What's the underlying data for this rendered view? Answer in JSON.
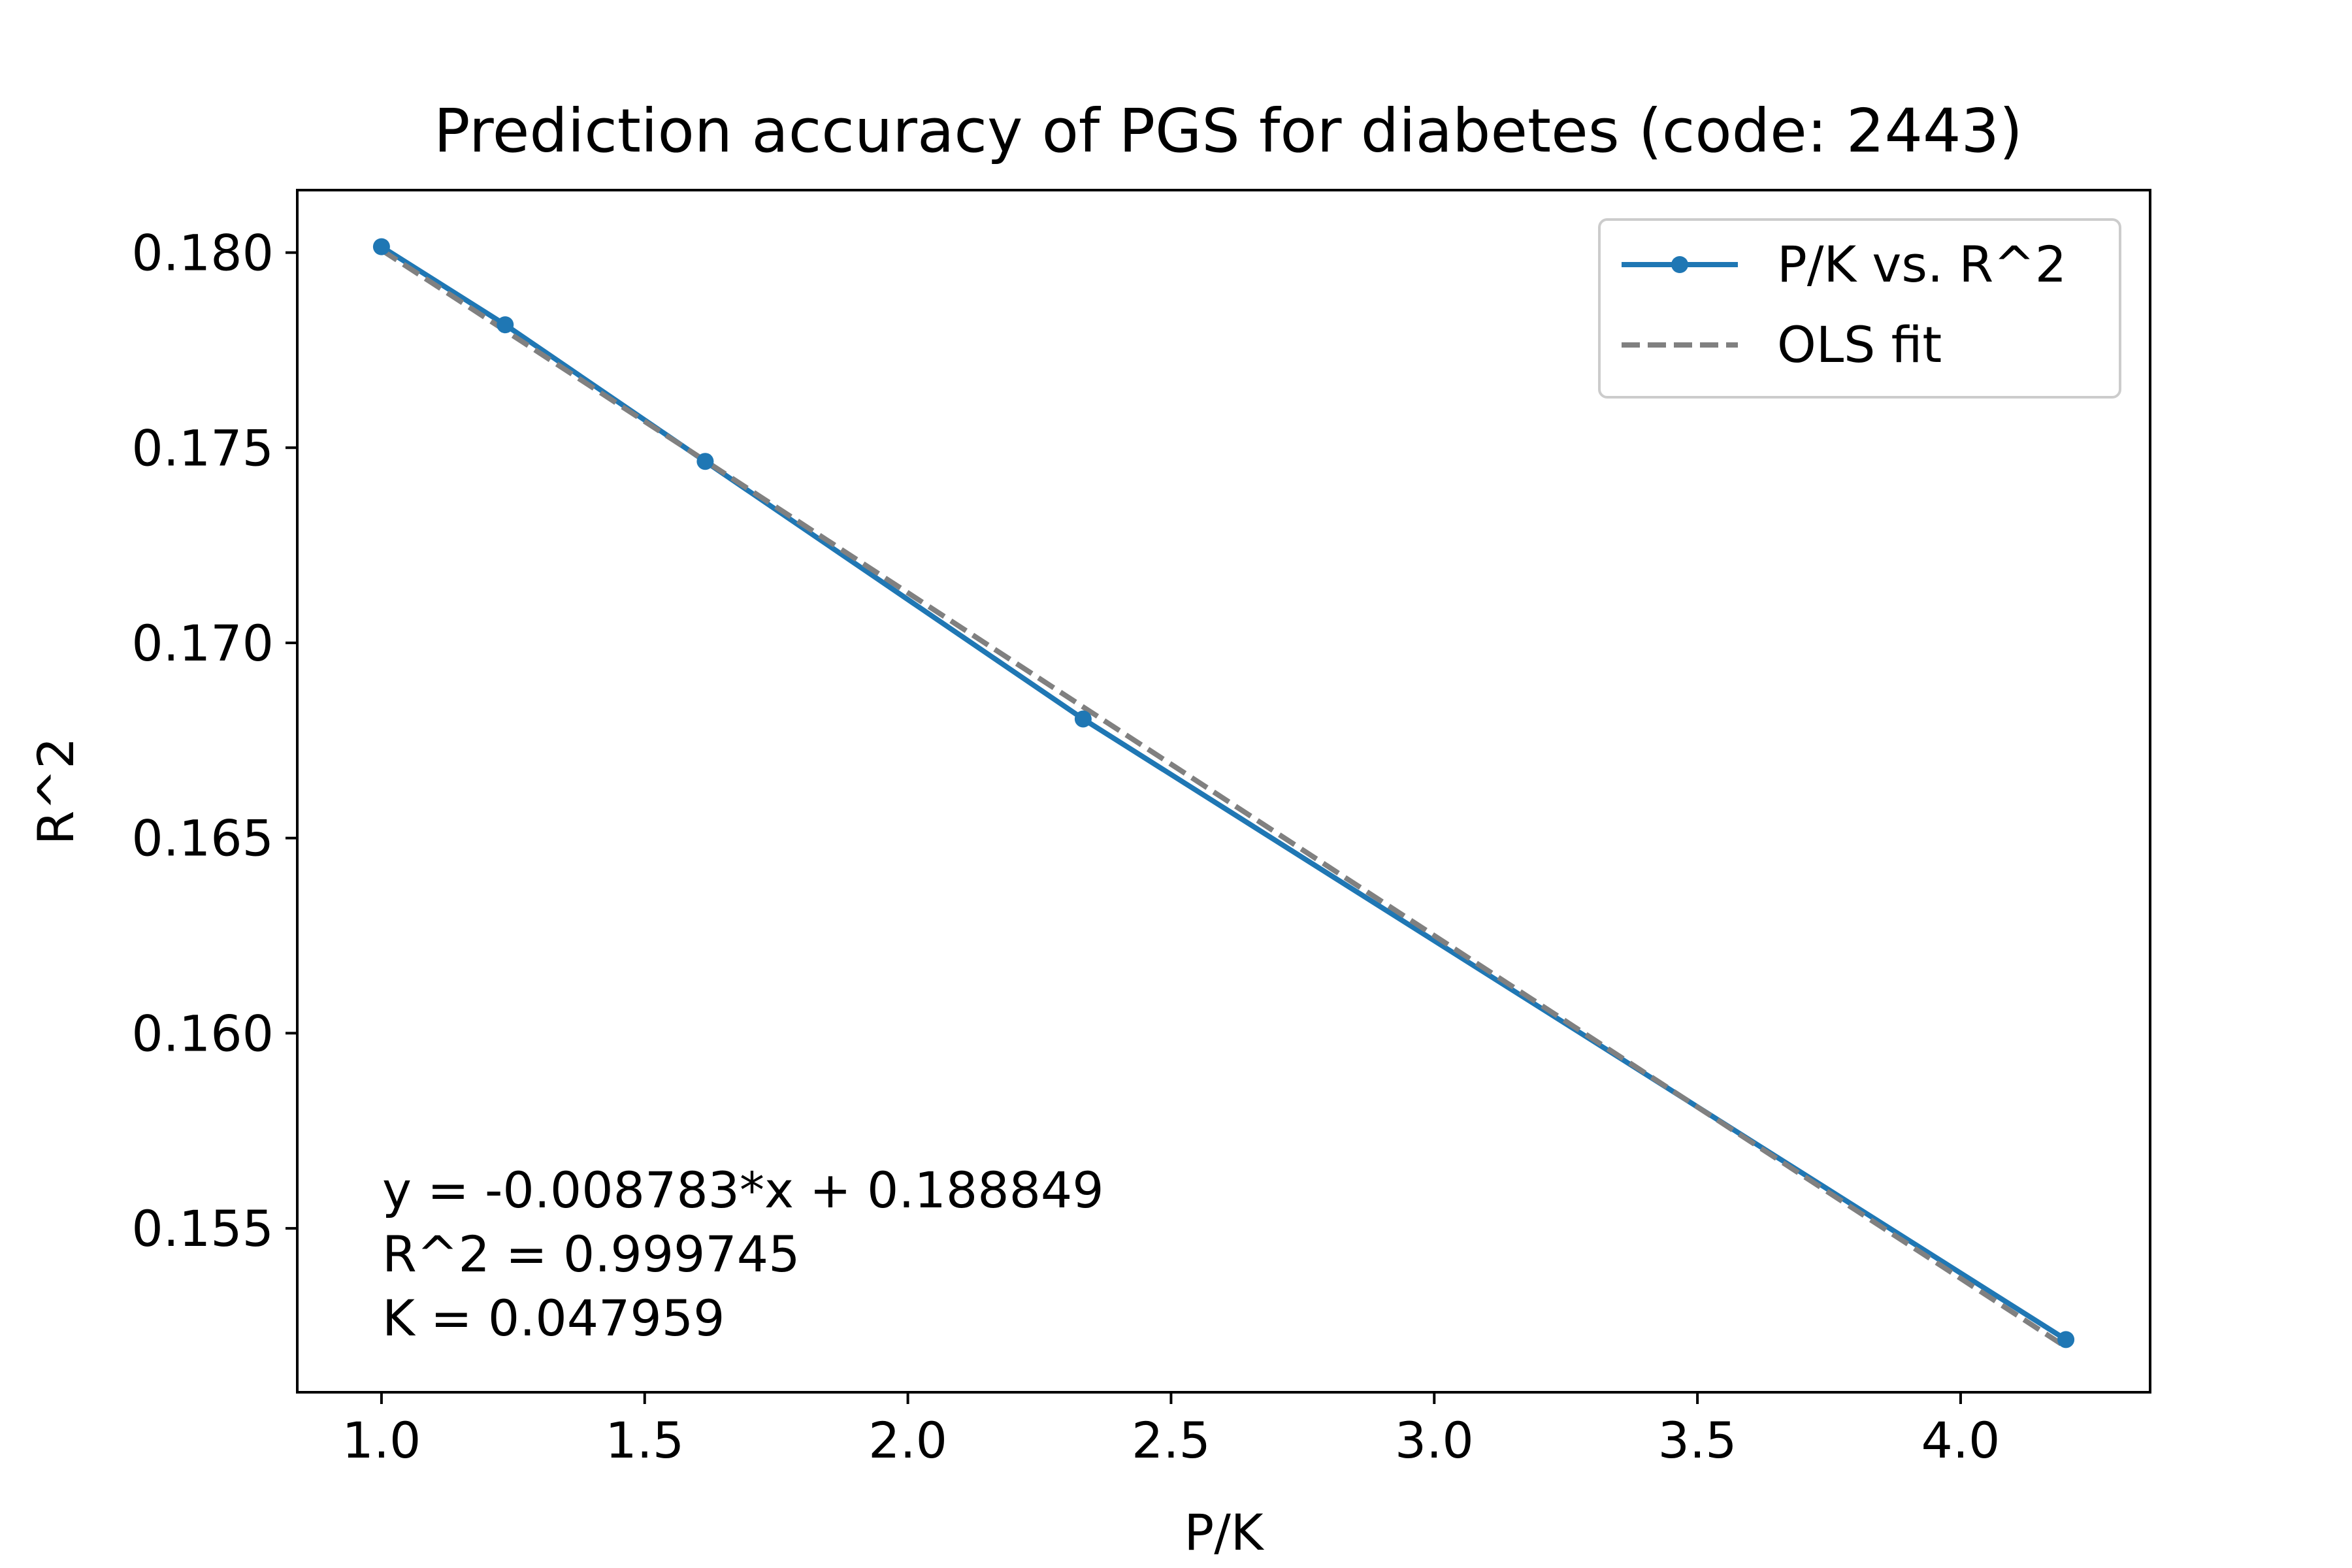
{
  "chart_data": {
    "type": "line",
    "title": "Prediction accuracy of PGS for diabetes (code: 2443)",
    "xlabel": "P/K",
    "ylabel": "R^2",
    "xlim": [
      0.84,
      4.36
    ],
    "ylim": [
      0.1508,
      0.1816
    ],
    "xticks": [
      1.0,
      1.5,
      2.0,
      2.5,
      3.0,
      3.5,
      4.0
    ],
    "xtick_labels": [
      "1.0",
      "1.5",
      "2.0",
      "2.5",
      "3.0",
      "3.5",
      "4.0"
    ],
    "yticks": [
      0.155,
      0.16,
      0.165,
      0.17,
      0.175,
      0.18
    ],
    "ytick_labels": [
      "0.155",
      "0.160",
      "0.165",
      "0.170",
      "0.175",
      "0.180"
    ],
    "grid": false,
    "legend_position": "top-right",
    "series": [
      {
        "name": "P/K vs. R^2",
        "style": "solid-line-with-dots",
        "color": "#1f77b4",
        "x": [
          1.0,
          1.235,
          1.615,
          2.333,
          4.2
        ],
        "y": [
          0.18015,
          0.17815,
          0.17465,
          0.16805,
          0.15215
        ]
      }
    ],
    "fit": {
      "name": "OLS fit",
      "style": "dashed",
      "color": "#808080",
      "slope": -0.008783,
      "intercept": 0.188849
    },
    "annotations": [
      "y = -0.008783*x + 0.188849",
      "R^2 = 0.999745",
      "K = 0.047959"
    ]
  }
}
